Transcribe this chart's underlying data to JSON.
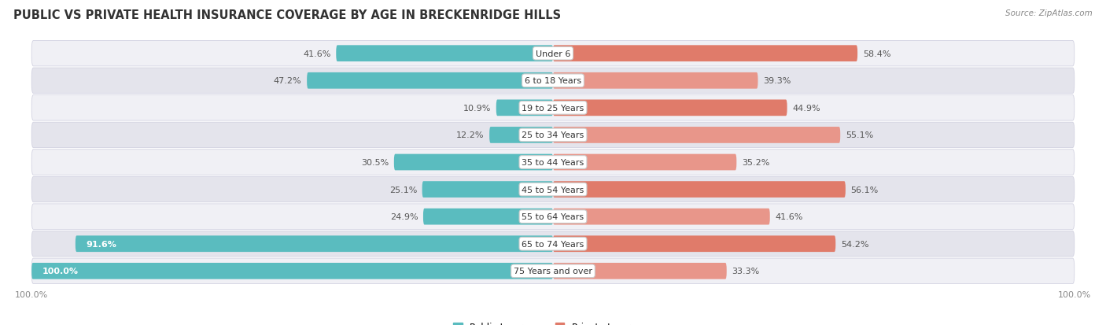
{
  "title": "PUBLIC VS PRIVATE HEALTH INSURANCE COVERAGE BY AGE IN BRECKENRIDGE HILLS",
  "source": "Source: ZipAtlas.com",
  "categories": [
    "Under 6",
    "6 to 18 Years",
    "19 to 25 Years",
    "25 to 34 Years",
    "35 to 44 Years",
    "45 to 54 Years",
    "55 to 64 Years",
    "65 to 74 Years",
    "75 Years and over"
  ],
  "public": [
    41.6,
    47.2,
    10.9,
    12.2,
    30.5,
    25.1,
    24.9,
    91.6,
    100.0
  ],
  "private": [
    58.4,
    39.3,
    44.9,
    55.1,
    35.2,
    56.1,
    41.6,
    54.2,
    33.3
  ],
  "public_color": "#5abcbf",
  "private_colors": [
    "#e07b6a",
    "#e8968a",
    "#e07b6a",
    "#e8968a",
    "#e8968a",
    "#e07b6a",
    "#e8968a",
    "#e07b6a",
    "#e8968a"
  ],
  "row_bg_light": "#f0f0f5",
  "row_bg_dark": "#e4e4ec",
  "title_fontsize": 10.5,
  "label_fontsize": 8,
  "value_fontsize": 8,
  "legend_fontsize": 8.5,
  "source_fontsize": 7.5,
  "axis_max": 100.0,
  "figsize": [
    14.06,
    4.14
  ],
  "dpi": 100
}
